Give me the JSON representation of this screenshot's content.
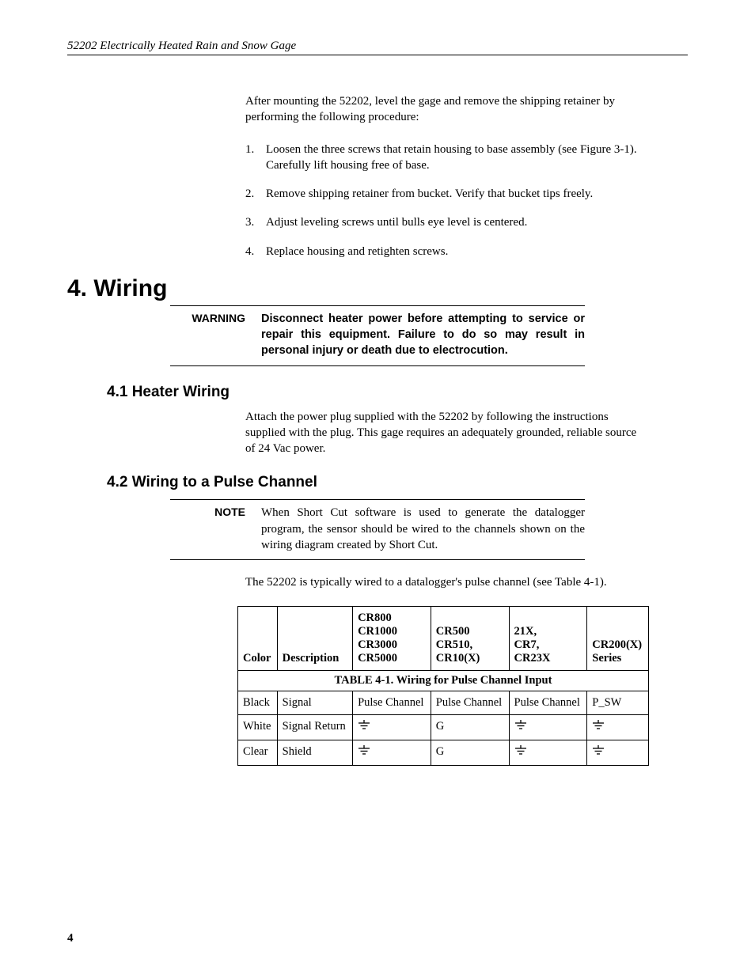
{
  "header": "52202 Electrically Heated Rain and Snow Gage",
  "intro_para": "After mounting the 52202, level the gage and remove the shipping retainer by performing the following procedure:",
  "steps": [
    "Loosen the three screws that retain housing to base assembly (see Figure 3-1).  Carefully lift housing free of base.",
    "Remove shipping retainer from bucket.  Verify that bucket tips freely.",
    "Adjust leveling screws until bulls eye level is centered.",
    "Replace housing and retighten screws."
  ],
  "section4_title": "4.  Wiring",
  "warning_label": "WARNING",
  "warning_text": "Disconnect heater power before attempting to service or repair this equipment.  Failure to do so may result in personal injury or death due to electrocution.",
  "sub41_title": "4.1  Heater Wiring",
  "sub41_text": "Attach the power plug supplied with the 52202 by following the instructions supplied with the plug. This gage requires an adequately grounded, reliable source of 24 Vac power.",
  "sub42_title": "4.2  Wiring to a Pulse Channel",
  "note_label": "NOTE",
  "note_text": "When Short Cut software is used to generate the datalogger program, the sensor should be wired to the channels shown on the wiring diagram created by Short Cut.",
  "sub42_text": "The 52202 is typically wired to a datalogger's pulse channel (see Table 4-1).",
  "table": {
    "caption": "TABLE 4-1.  Wiring for Pulse Channel Input",
    "columns": [
      "Color",
      "Description",
      "CR800\nCR1000\nCR3000\nCR5000",
      "CR500\nCR510,\nCR10(X)",
      "21X,\nCR7,\nCR23X",
      "CR200(X)\nSeries"
    ],
    "rows": [
      {
        "color": "Black",
        "desc": "Signal",
        "c1": "Pulse Channel",
        "c2": "Pulse Channel",
        "c3": "Pulse Channel",
        "c4": "P_SW"
      },
      {
        "color": "White",
        "desc": "Signal Return",
        "c1": "__GND__",
        "c2": "G",
        "c3": "__GND__",
        "c4": "__GND__"
      },
      {
        "color": "Clear",
        "desc": "Shield",
        "c1": "__GND__",
        "c2": "G",
        "c3": "__GND__",
        "c4": "__GND__"
      }
    ]
  },
  "page_number": "4"
}
